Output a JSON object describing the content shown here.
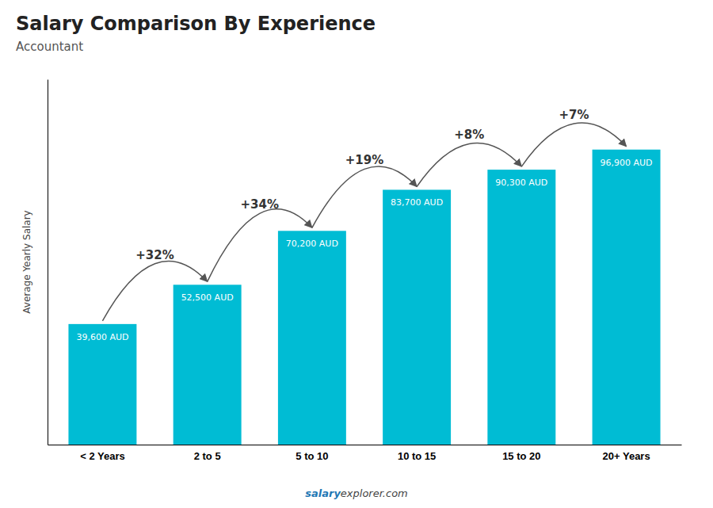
{
  "chart_data": {
    "type": "bar",
    "title": "Salary Comparison By Experience",
    "subtitle": "Accountant",
    "ylabel": "Average Yearly Salary",
    "categories": [
      "< 2 Years",
      "2 to 5",
      "5 to 10",
      "10 to 15",
      "15 to 20",
      "20+ Years"
    ],
    "values": [
      39600,
      52500,
      70200,
      83700,
      90300,
      96900
    ],
    "value_labels": [
      "39,600 AUD",
      "52,500 AUD",
      "70,200 AUD",
      "83,700 AUD",
      "90,300 AUD",
      "96,900 AUD"
    ],
    "data_labels": true,
    "annotations": [
      "+32%",
      "+34%",
      "+19%",
      "+8%",
      "+7%"
    ],
    "footer": [
      "salary",
      "explorer.com"
    ],
    "color": "#00bcd4",
    "ylim": [
      0,
      120000
    ],
    "tick_labels": "x",
    "grid": false
  }
}
